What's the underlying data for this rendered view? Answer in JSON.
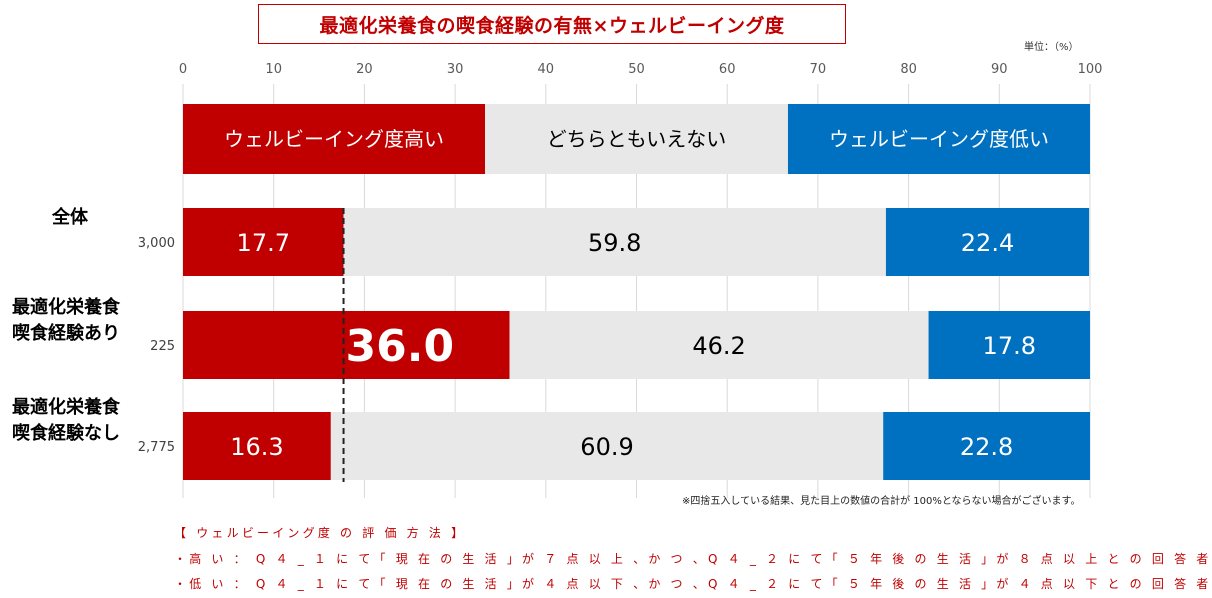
{
  "title": "最適化栄養食の喫食経験の有無×ウェルビーイング度",
  "unit_label": "単位：（%）",
  "footnote": "※四捨五入している結果、見た目上の数値の合計が 100%とならない場合がございます。",
  "method": {
    "heading": "【 ウェルビーイング度 の 評 価 方 法 】",
    "line_high": "・高 い ： Q ４ _ １ に て「 現 在 の 生 活 」が ７ 点 以 上 、か つ 、Q ４ _ ２ に て「 ５ 年 後 の 生 活 」が ８ 点 以 上 と の 回 答 者",
    "line_low": "・低 い ： Q ４ _ １ に て「 現 在 の 生 活 」が ４ 点 以 下 、か つ 、Q ４ _ ２ に て「 ５ 年 後 の 生 活 」が ４ 点 以 下 と の 回 答 者"
  },
  "chart_data": {
    "type": "bar",
    "orientation": "horizontal",
    "stacked": true,
    "xlim": [
      0,
      100
    ],
    "xticks": [
      0,
      10,
      20,
      30,
      40,
      50,
      60,
      70,
      80,
      90,
      100
    ],
    "grid": true,
    "legend": {
      "placement": "top",
      "items": [
        {
          "label": "ウェルビーイング度高い",
          "value": 33.3
        },
        {
          "label": "どちらともいえない",
          "value": 33.4
        },
        {
          "label": "ウェルビーイング度低い",
          "value": 33.3
        }
      ]
    },
    "categories": [
      {
        "label": "全体",
        "n": "3,000"
      },
      {
        "label": "最適化栄養食\n喫食経験あり",
        "n": "225"
      },
      {
        "label": "最適化栄養食\n喫食経験なし",
        "n": "2,775"
      }
    ],
    "series": [
      {
        "name": "ウェルビーイング度高い",
        "color": "#c00000",
        "values": [
          17.7,
          36.0,
          16.3
        ]
      },
      {
        "name": "どちらともいえない",
        "color": "#e8e8e8",
        "values": [
          59.8,
          46.2,
          60.9
        ]
      },
      {
        "name": "ウェルビーイング度低い",
        "color": "#0070c0",
        "values": [
          22.4,
          17.8,
          22.8
        ]
      }
    ],
    "reference_line": {
      "x": 17.7,
      "style": "dashed"
    }
  }
}
